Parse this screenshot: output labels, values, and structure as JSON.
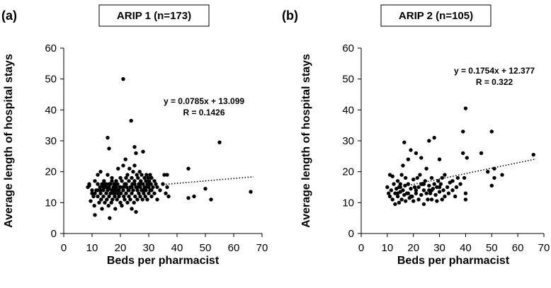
{
  "chart_data": [
    {
      "type": "scatter",
      "panel_label": "(a)",
      "title": "ARIP 1 (n=173)",
      "xlabel": "Beds per pharmacist",
      "ylabel": "Average length of hospital stays",
      "xlim": [
        0,
        70
      ],
      "ylim": [
        0,
        60
      ],
      "xticks": [
        "0",
        "10",
        "20",
        "30",
        "40",
        "50",
        "60",
        "70"
      ],
      "yticks": [
        "0",
        "10",
        "20",
        "30",
        "40",
        "50",
        "60"
      ],
      "equation": "y = 0.0785x + 13.099",
      "r_text": "R = 0.1426",
      "trendline": {
        "slope": 0.0785,
        "intercept": 13.099,
        "x_range": [
          35,
          67
        ]
      },
      "points": [
        [
          8.5,
          15
        ],
        [
          9,
          16
        ],
        [
          9.5,
          10.5
        ],
        [
          10,
          14
        ],
        [
          10.5,
          12
        ],
        [
          10.8,
          9
        ],
        [
          11,
          17
        ],
        [
          11,
          6
        ],
        [
          11.5,
          14
        ],
        [
          12,
          19
        ],
        [
          12,
          12
        ],
        [
          12.5,
          10
        ],
        [
          12.8,
          15
        ],
        [
          13,
          20
        ],
        [
          13,
          13
        ],
        [
          13.2,
          11
        ],
        [
          13.5,
          16
        ],
        [
          13.5,
          8
        ],
        [
          14,
          14
        ],
        [
          14,
          12
        ],
        [
          14.2,
          17
        ],
        [
          14.5,
          10
        ],
        [
          14.5,
          15
        ],
        [
          15,
          13
        ],
        [
          15,
          16
        ],
        [
          15.2,
          11
        ],
        [
          15.5,
          31
        ],
        [
          15.5,
          19
        ],
        [
          15.5,
          14
        ],
        [
          15.8,
          9
        ],
        [
          16,
          27.5
        ],
        [
          16,
          12
        ],
        [
          16,
          15
        ],
        [
          16.2,
          5
        ],
        [
          16.5,
          13
        ],
        [
          16.5,
          16
        ],
        [
          16.8,
          10
        ],
        [
          17,
          14
        ],
        [
          17,
          18
        ],
        [
          17.2,
          11
        ],
        [
          17.5,
          15
        ],
        [
          17.5,
          13
        ],
        [
          17.8,
          16
        ],
        [
          18,
          12
        ],
        [
          18,
          14
        ],
        [
          18.2,
          8
        ],
        [
          18.5,
          15
        ],
        [
          18.5,
          17
        ],
        [
          18.8,
          11
        ],
        [
          19,
          13
        ],
        [
          19,
          16
        ],
        [
          19.2,
          21
        ],
        [
          19.5,
          14
        ],
        [
          19.5,
          12
        ],
        [
          19.8,
          15
        ],
        [
          20,
          10
        ],
        [
          20,
          18
        ],
        [
          20.2,
          13
        ],
        [
          20.5,
          17
        ],
        [
          20.5,
          9
        ],
        [
          21,
          50
        ],
        [
          21,
          14
        ],
        [
          21,
          22
        ],
        [
          21.2,
          12
        ],
        [
          21.5,
          16
        ],
        [
          21.5,
          11
        ],
        [
          21.8,
          24
        ],
        [
          22,
          18
        ],
        [
          22,
          13
        ],
        [
          22.2,
          15
        ],
        [
          22.5,
          10
        ],
        [
          22.5,
          19
        ],
        [
          22.8,
          14
        ],
        [
          23,
          17
        ],
        [
          23,
          12
        ],
        [
          23.2,
          21
        ],
        [
          23.5,
          15
        ],
        [
          23.5,
          11
        ],
        [
          23.8,
          36.5
        ],
        [
          24,
          18
        ],
        [
          24,
          13
        ],
        [
          24,
          8
        ],
        [
          24.2,
          16
        ],
        [
          24.5,
          20
        ],
        [
          24.5,
          14
        ],
        [
          24.8,
          10
        ],
        [
          25,
          28
        ],
        [
          25,
          17
        ],
        [
          25,
          22
        ],
        [
          25.2,
          12
        ],
        [
          25.5,
          15
        ],
        [
          25.5,
          26
        ],
        [
          25.5,
          7
        ],
        [
          25.8,
          19
        ],
        [
          26,
          14
        ],
        [
          26,
          11
        ],
        [
          26.2,
          18
        ],
        [
          26.5,
          16
        ],
        [
          26.5,
          13
        ],
        [
          26.8,
          20
        ],
        [
          27,
          15
        ],
        [
          27,
          12
        ],
        [
          27.2,
          17
        ],
        [
          27.5,
          14
        ],
        [
          27.5,
          19
        ],
        [
          27.8,
          11
        ],
        [
          28,
          16
        ],
        [
          28,
          26.5
        ],
        [
          28.2,
          13
        ],
        [
          28.5,
          18
        ],
        [
          28.5,
          15
        ],
        [
          28.8,
          12
        ],
        [
          29,
          17
        ],
        [
          29,
          14
        ],
        [
          29.2,
          19
        ],
        [
          29.5,
          16
        ],
        [
          29.5,
          11
        ],
        [
          29.8,
          18
        ],
        [
          30,
          15
        ],
        [
          30,
          13
        ],
        [
          30.2,
          17
        ],
        [
          30.5,
          14
        ],
        [
          30.5,
          19
        ],
        [
          30.8,
          16
        ],
        [
          31,
          12
        ],
        [
          31,
          18
        ],
        [
          31.5,
          15
        ],
        [
          32,
          17
        ],
        [
          32,
          13
        ],
        [
          32.5,
          16
        ],
        [
          33,
          15
        ],
        [
          33,
          11
        ],
        [
          34,
          14
        ],
        [
          35,
          16
        ],
        [
          35.5,
          19
        ],
        [
          36,
          13
        ],
        [
          36.5,
          15
        ],
        [
          36.5,
          19
        ],
        [
          37,
          12
        ],
        [
          44,
          11.5
        ],
        [
          44,
          21
        ],
        [
          46,
          12
        ],
        [
          50,
          14.5
        ],
        [
          52,
          11
        ],
        [
          55,
          29.5
        ],
        [
          66,
          13.5
        ],
        [
          9,
          15.5
        ],
        [
          12,
          14
        ],
        [
          14,
          16
        ],
        [
          16,
          14.5
        ],
        [
          18,
          13
        ],
        [
          20,
          15
        ],
        [
          22,
          16
        ],
        [
          24,
          15
        ],
        [
          26,
          15
        ],
        [
          28,
          14
        ],
        [
          30,
          16
        ],
        [
          17,
          17
        ],
        [
          19,
          14
        ],
        [
          23,
          14
        ],
        [
          21,
          15
        ],
        [
          25,
          16
        ],
        [
          27,
          16
        ],
        [
          29,
          15
        ],
        [
          31,
          14
        ],
        [
          15,
          15
        ],
        [
          13,
          14
        ],
        [
          11,
          13
        ],
        [
          10,
          13
        ],
        [
          12,
          16
        ],
        [
          14,
          15
        ],
        [
          16,
          16
        ],
        [
          18,
          16
        ]
      ]
    },
    {
      "type": "scatter",
      "panel_label": "(b)",
      "title": "ARIP 2 (n=105)",
      "xlabel": "Beds per pharmacist",
      "ylabel": "Average length of hospital stays",
      "xlim": [
        0,
        70
      ],
      "ylim": [
        0,
        60
      ],
      "xticks": [
        "0",
        "10",
        "20",
        "30",
        "40",
        "50",
        "60",
        "70"
      ],
      "yticks": [
        "0",
        "10",
        "20",
        "30",
        "40",
        "50",
        "60"
      ],
      "equation": "y = 0.1754x + 12.377",
      "r_text": "R = 0.322",
      "trendline": {
        "slope": 0.1754,
        "intercept": 12.377,
        "x_range": [
          17,
          67
        ]
      },
      "points": [
        [
          10,
          15
        ],
        [
          10.5,
          13
        ],
        [
          11,
          19
        ],
        [
          11,
          12
        ],
        [
          11.5,
          14
        ],
        [
          12,
          18.5
        ],
        [
          12,
          11
        ],
        [
          12.5,
          16
        ],
        [
          13,
          13
        ],
        [
          13,
          9.5
        ],
        [
          13.5,
          14.5
        ],
        [
          14,
          12
        ],
        [
          14,
          17
        ],
        [
          14.5,
          10
        ],
        [
          14.5,
          15
        ],
        [
          15,
          13.5
        ],
        [
          15,
          16
        ],
        [
          15.5,
          11
        ],
        [
          15.5,
          19
        ],
        [
          16,
          14
        ],
        [
          16,
          22
        ],
        [
          16.5,
          29.5
        ],
        [
          16.5,
          12.5
        ],
        [
          16.8,
          15.5
        ],
        [
          17,
          10.5
        ],
        [
          17,
          18
        ],
        [
          17.5,
          13
        ],
        [
          18,
          16
        ],
        [
          18,
          24
        ],
        [
          18.5,
          11.5
        ],
        [
          19,
          14.5
        ],
        [
          19,
          27
        ],
        [
          19.5,
          12
        ],
        [
          20,
          17.5
        ],
        [
          20,
          10.5
        ],
        [
          20.5,
          15
        ],
        [
          21,
          26
        ],
        [
          21,
          13
        ],
        [
          21.5,
          18
        ],
        [
          22,
          11
        ],
        [
          22,
          15
        ],
        [
          22.5,
          19
        ],
        [
          23,
          12.5
        ],
        [
          23,
          24.5
        ],
        [
          23.5,
          16
        ],
        [
          24,
          9.5
        ],
        [
          24,
          14
        ],
        [
          24.5,
          17
        ],
        [
          25,
          13
        ],
        [
          25,
          21
        ],
        [
          25.5,
          11
        ],
        [
          26,
          15.5
        ],
        [
          26,
          30
        ],
        [
          26.5,
          13
        ],
        [
          27,
          18
        ],
        [
          27,
          11
        ],
        [
          27.5,
          14.5
        ],
        [
          28,
          16
        ],
        [
          28,
          31
        ],
        [
          28.5,
          12.5
        ],
        [
          29,
          15
        ],
        [
          29,
          10.5
        ],
        [
          29.5,
          17
        ],
        [
          30,
          13.5
        ],
        [
          30,
          24
        ],
        [
          30.5,
          16
        ],
        [
          31,
          11
        ],
        [
          31,
          18
        ],
        [
          31.5,
          14
        ],
        [
          32,
          19
        ],
        [
          32,
          12
        ],
        [
          33,
          15
        ],
        [
          33.5,
          13
        ],
        [
          34,
          16.5
        ],
        [
          35,
          14
        ],
        [
          35,
          17
        ],
        [
          36,
          12
        ],
        [
          36.5,
          15
        ],
        [
          37,
          18
        ],
        [
          38,
          16
        ],
        [
          39,
          26
        ],
        [
          39,
          33
        ],
        [
          39.5,
          18
        ],
        [
          40,
          40.5
        ],
        [
          40,
          13
        ],
        [
          40,
          11
        ],
        [
          40.5,
          24.5
        ],
        [
          46,
          26
        ],
        [
          48.5,
          20
        ],
        [
          50,
          33
        ],
        [
          50,
          15.5
        ],
        [
          51,
          21
        ],
        [
          51,
          18
        ],
        [
          54,
          19
        ],
        [
          66,
          25.5
        ],
        [
          15,
          15
        ],
        [
          18,
          13
        ],
        [
          21,
          14
        ],
        [
          24,
          16
        ],
        [
          27,
          14
        ],
        [
          14,
          13
        ],
        [
          19,
          12
        ],
        [
          23,
          16
        ],
        [
          26,
          14
        ],
        [
          30,
          15
        ]
      ]
    }
  ]
}
